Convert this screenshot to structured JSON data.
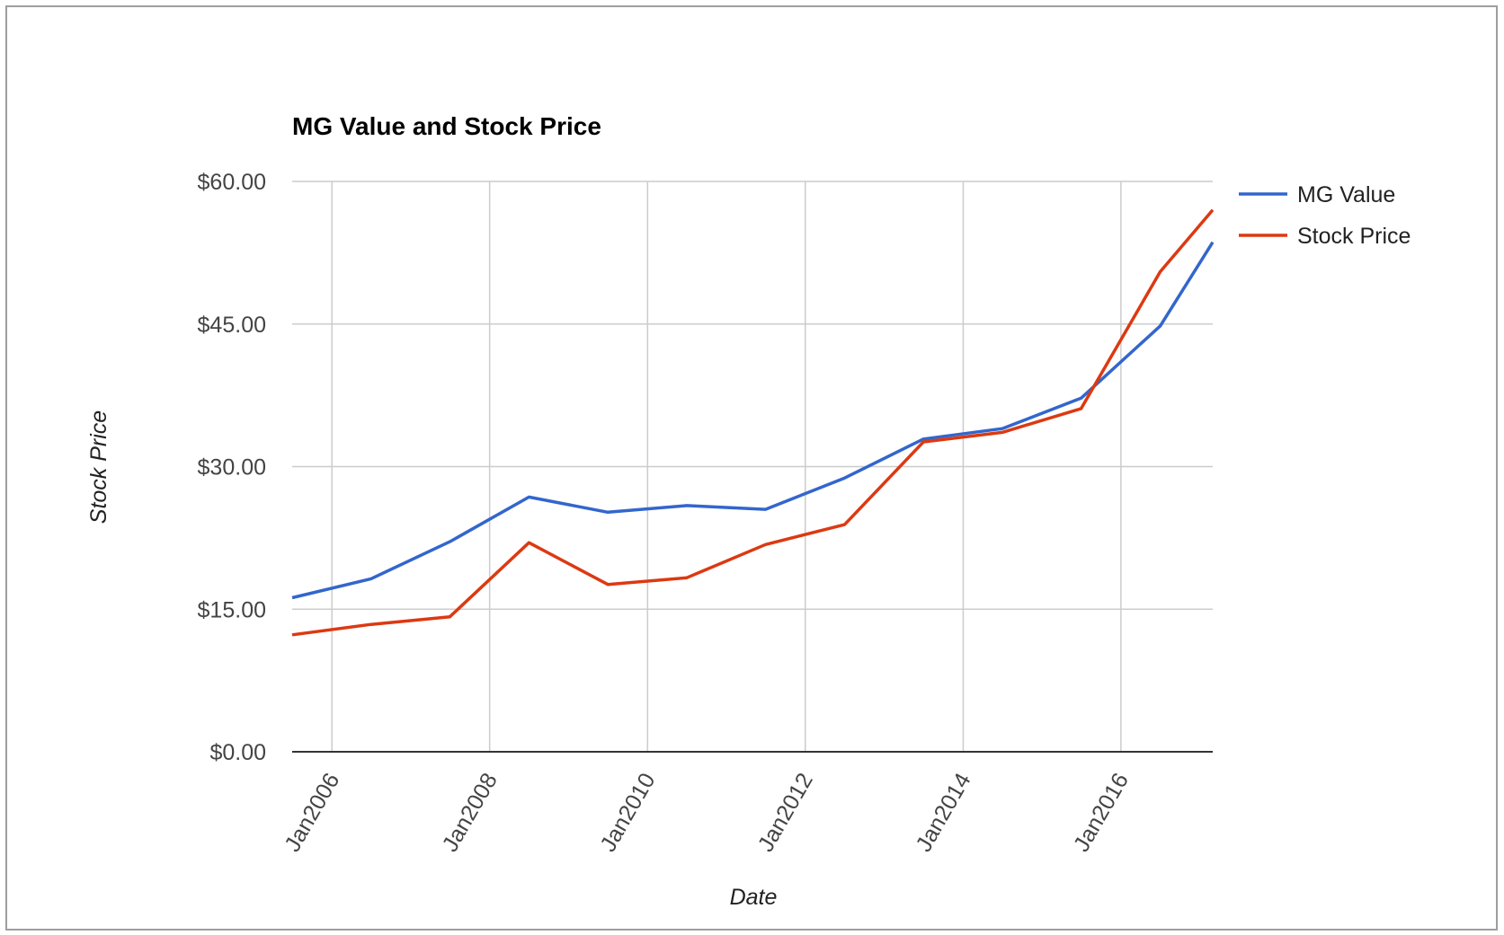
{
  "chart_data": {
    "type": "line",
    "title": "MG Value and Stock Price",
    "xlabel": "Date",
    "ylabel": "Stock Price",
    "x_ticks": [
      "Jan2006",
      "Jan2008",
      "Jan2010",
      "Jan2012",
      "Jan2014",
      "Jan2016"
    ],
    "y_ticks": [
      "$0.00",
      "$15.00",
      "$30.00",
      "$45.00",
      "$60.00"
    ],
    "ylim": [
      0,
      60
    ],
    "xlim": [
      "2005-07-01",
      "2017-03-01"
    ],
    "grid": true,
    "legend_position": "right",
    "x": [
      "2005-07-01",
      "2006-07-01",
      "2007-07-01",
      "2008-07-01",
      "2009-07-01",
      "2010-07-01",
      "2011-07-01",
      "2012-07-01",
      "2013-07-01",
      "2014-07-01",
      "2015-07-01",
      "2016-07-01",
      "2017-03-01"
    ],
    "series": [
      {
        "name": "MG Value",
        "color": "#3366cc",
        "values": [
          16.2,
          18.2,
          22.1,
          26.8,
          25.2,
          25.9,
          25.5,
          28.8,
          32.9,
          34.0,
          37.2,
          44.8,
          53.6
        ]
      },
      {
        "name": "Stock Price",
        "color": "#dc3912",
        "values": [
          12.3,
          13.4,
          14.2,
          22.0,
          17.6,
          18.3,
          21.8,
          23.9,
          32.6,
          33.6,
          36.1,
          50.5,
          57.0
        ]
      }
    ]
  }
}
